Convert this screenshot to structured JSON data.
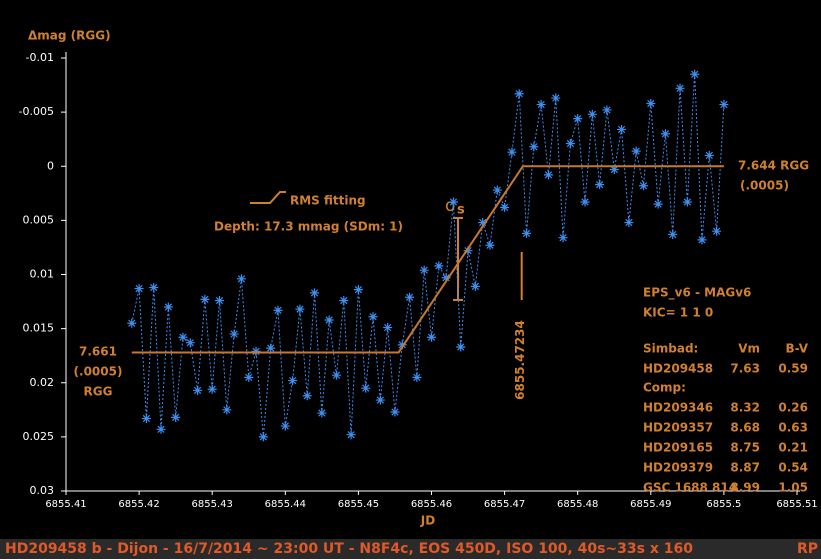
{
  "chart_data": {
    "type": "scatter",
    "y_label": "Δmag (RGG)",
    "x_label": "JD",
    "xlim": [
      6855.41,
      6855.51
    ],
    "xticks": [
      6855.41,
      6855.42,
      6855.43,
      6855.44,
      6855.45,
      6855.46,
      6855.47,
      6855.48,
      6855.49,
      6855.5,
      6855.51
    ],
    "ylim": [
      -0.01,
      0.03
    ],
    "yticks": [
      -0.01,
      -0.005,
      0,
      0.005,
      0.01,
      0.015,
      0.02,
      0.025,
      0.03
    ],
    "series": [
      {
        "color": "#3d8ef0",
        "x": [
          6855.419,
          6855.42,
          6855.421,
          6855.422,
          6855.423,
          6855.424,
          6855.425,
          6855.426,
          6855.427,
          6855.428,
          6855.429,
          6855.43,
          6855.431,
          6855.432,
          6855.433,
          6855.434,
          6855.435,
          6855.436,
          6855.437,
          6855.438,
          6855.439,
          6855.44,
          6855.441,
          6855.442,
          6855.443,
          6855.444,
          6855.445,
          6855.446,
          6855.447,
          6855.448,
          6855.449,
          6855.45,
          6855.451,
          6855.452,
          6855.453,
          6855.454,
          6855.455,
          6855.456,
          6855.457,
          6855.458,
          6855.459,
          6855.46,
          6855.461,
          6855.462,
          6855.463,
          6855.464,
          6855.465,
          6855.466,
          6855.467,
          6855.468,
          6855.469,
          6855.47,
          6855.471,
          6855.472,
          6855.473,
          6855.474,
          6855.475,
          6855.476,
          6855.477,
          6855.478,
          6855.479,
          6855.48,
          6855.481,
          6855.482,
          6855.483,
          6855.484,
          6855.485,
          6855.486,
          6855.487,
          6855.488,
          6855.489,
          6855.49,
          6855.491,
          6855.492,
          6855.493,
          6855.494,
          6855.495,
          6855.496,
          6855.497,
          6855.498,
          6855.499,
          6855.5
        ],
        "values": [
          0.0145,
          0.0113,
          0.0233,
          0.0112,
          0.0243,
          0.013,
          0.0232,
          0.0158,
          0.0163,
          0.0207,
          0.0123,
          0.0206,
          0.0124,
          0.0225,
          0.0155,
          0.0104,
          0.0195,
          0.0171,
          0.025,
          0.0168,
          0.0133,
          0.024,
          0.0198,
          0.0132,
          0.0212,
          0.0117,
          0.0228,
          0.0142,
          0.0193,
          0.0124,
          0.0248,
          0.0114,
          0.0205,
          0.0139,
          0.0216,
          0.0149,
          0.0227,
          0.0165,
          0.0121,
          0.0195,
          0.0096,
          0.0158,
          0.0092,
          0.0103,
          0.0033,
          0.0167,
          0.0078,
          0.0111,
          0.0052,
          0.0073,
          0.0022,
          0.0038,
          -0.0013,
          -0.0067,
          0.0062,
          -0.0018,
          -0.0057,
          0.0008,
          -0.0063,
          0.0066,
          -0.0021,
          -0.0044,
          0.0033,
          -0.0048,
          0.0017,
          -0.0052,
          0.0003,
          -0.0034,
          0.0052,
          -0.0014,
          0.0018,
          -0.0058,
          0.0035,
          -0.003,
          0.0063,
          -0.0072,
          0.0033,
          -0.0085,
          0.0068,
          -0.001,
          0.006,
          -0.0057
        ]
      },
      {
        "name": "RMS fitting",
        "color": "#c8782e",
        "x": [
          6855.419,
          6855.4555,
          6855.4725,
          6855.5
        ],
        "values": [
          0.0172,
          0.0172,
          0,
          0
        ]
      }
    ],
    "depth": "Depth: 17.3 mmag (SDm: 1)",
    "sigma": "σ",
    "sigma_sub": "s",
    "mid_time": 6855.47234,
    "left_label": [
      "7.661",
      "(.0005)",
      "RGG"
    ],
    "right_label": [
      "7.644 RGG",
      "(.0005)"
    ],
    "info": {
      "lines": [
        "EPS_v6 - MAGv6",
        "KIC= 1 1 0"
      ],
      "header": [
        "Simbad:",
        "Vm",
        "B-V"
      ],
      "target": [
        "HD209458",
        "7.63",
        "0.59"
      ],
      "comp": "Comp:",
      "rows": [
        [
          "HD209346",
          "8.32",
          "0.26"
        ],
        [
          "HD209357",
          "8.68",
          "0.63"
        ],
        [
          "HD209165",
          "8.75",
          "0.21"
        ],
        [
          "HD209379",
          "8.87",
          "0.54"
        ],
        [
          "GSC 1688 814",
          "8.99",
          "1.05"
        ]
      ]
    },
    "footer": "HD209458 b  - Dijon - 16/7/2014 ~ 23:00 UT  -  N8F4c, EOS 450D, ISO 100, 40s~33s x 160",
    "footer_right": "RP"
  }
}
